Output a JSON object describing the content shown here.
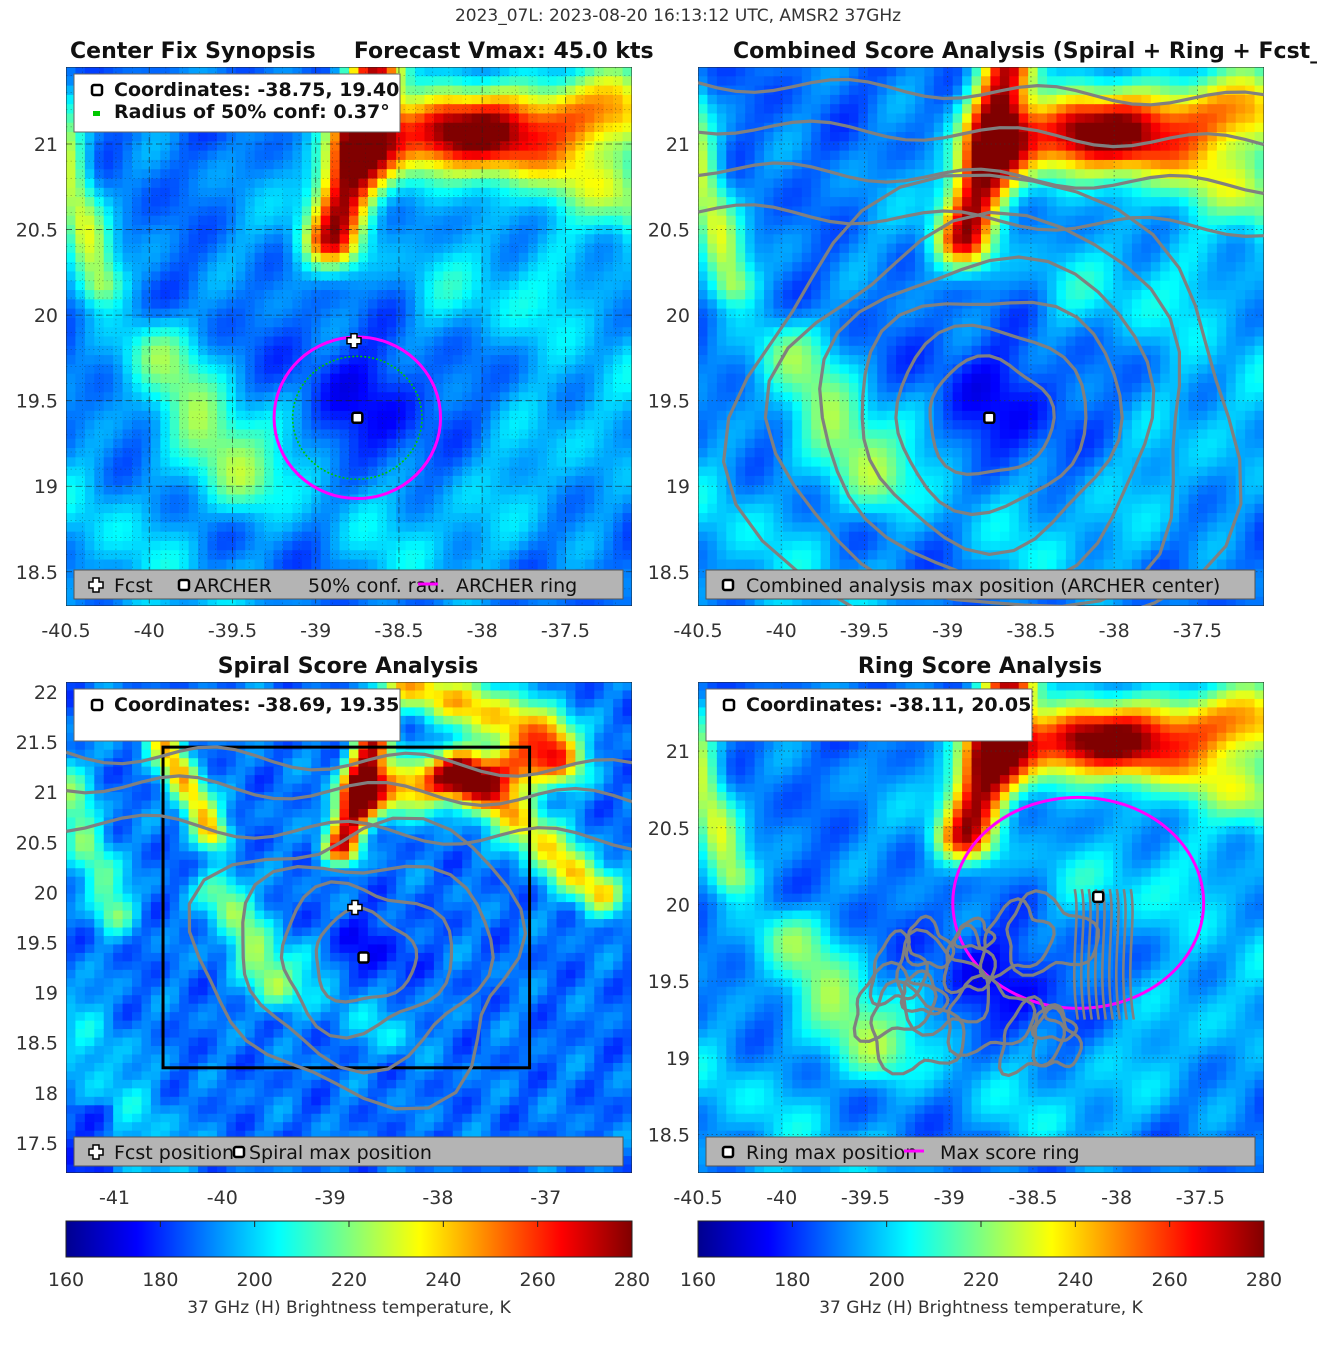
{
  "figure_title": "2023_07L: 2023-08-20 16:13:12 UTC, AMSR2 37GHz",
  "colors": {
    "jet": [
      "#00008f",
      "#0000ff",
      "#00ffff",
      "#ffff00",
      "#ff0000",
      "#800000"
    ],
    "contour": "#808080",
    "ring": "#ff00ff",
    "conf": "#00c800",
    "legend_bg": "#b4b4b4"
  },
  "chart_data": [
    {
      "id": "center-fix",
      "type": "heatmap",
      "title": "Center Fix Synopsis     Forecast Vmax: 45.0 kts",
      "xlim": [
        -40.5,
        -37.1
      ],
      "ylim": [
        18.3,
        21.45
      ],
      "xticks": [
        "-40.5",
        "-40",
        "-39.5",
        "-39",
        "-38.5",
        "-38",
        "-37.5"
      ],
      "xtick_values": [
        -40.5,
        -40,
        -39.5,
        -39,
        -38.5,
        -38,
        -37.5
      ],
      "yticks": [
        "18.5",
        "19",
        "19.5",
        "20",
        "20.5",
        "21"
      ],
      "ytick_values": [
        18.5,
        19,
        19.5,
        20,
        20.5,
        21
      ],
      "grid": "dashed-major",
      "info_lines": [
        "Coordinates: -38.75, 19.40",
        "Radius of 50% conf: 0.37°"
      ],
      "legend": [
        "Fcst",
        "ARCHER",
        "50% conf. rad.",
        "ARCHER ring"
      ],
      "fcst_position": [
        -38.77,
        19.85
      ],
      "archer_center": [
        -38.75,
        19.4
      ],
      "conf_radius_deg": 0.37,
      "ring_radius_deg": 0.5
    },
    {
      "id": "combined",
      "type": "heatmap",
      "title": "Combined Score Analysis (Spiral + Ring + Fcst_Pe",
      "xlim": [
        -40.5,
        -37.1
      ],
      "ylim": [
        18.3,
        21.45
      ],
      "xticks": [
        "-40.5",
        "-40",
        "-39.5",
        "-39",
        "-38.5",
        "-38",
        "-37.5"
      ],
      "xtick_values": [
        -40.5,
        -40,
        -39.5,
        -39,
        -38.5,
        -38,
        -37.5
      ],
      "yticks": [
        "18.5",
        "19",
        "19.5",
        "20",
        "20.5",
        "21"
      ],
      "ytick_values": [
        18.5,
        19,
        19.5,
        20,
        20.5,
        21
      ],
      "grid": "dotted",
      "legend": [
        "Combined analysis max position (ARCHER center)"
      ],
      "max_position": [
        -38.75,
        19.4
      ]
    },
    {
      "id": "spiral",
      "type": "heatmap",
      "title": "Spiral Score Analysis",
      "xlim": [
        -41.45,
        -36.2
      ],
      "ylim": [
        17.2,
        22.1
      ],
      "xticks": [
        "-41",
        "-40",
        "-39",
        "-38",
        "-37"
      ],
      "xtick_values": [
        -41,
        -40,
        -39,
        -38,
        -37
      ],
      "yticks": [
        "17.5",
        "18",
        "18.5",
        "19",
        "19.5",
        "20",
        "20.5",
        "21",
        "21.5",
        "22"
      ],
      "ytick_values": [
        17.5,
        18,
        18.5,
        19,
        19.5,
        20,
        20.5,
        21,
        21.5,
        22
      ],
      "grid": "none",
      "info_lines": [
        "Coordinates: -38.69, 19.35"
      ],
      "legend": [
        "Fcst position",
        "Spiral max position"
      ],
      "fcst_position": [
        -38.77,
        19.85
      ],
      "max_position": [
        -38.69,
        19.35
      ],
      "search_box": [
        -40.55,
        18.25,
        -37.15,
        21.45
      ]
    },
    {
      "id": "ring",
      "type": "heatmap",
      "title": "Ring Score Analysis",
      "xlim": [
        -40.5,
        -37.12
      ],
      "ylim": [
        18.25,
        21.45
      ],
      "xticks": [
        "-40.5",
        "-40",
        "-39.5",
        "-39",
        "-38.5",
        "-38",
        "-37.5"
      ],
      "xtick_values": [
        -40.5,
        -40,
        -39.5,
        -39,
        -38.5,
        -38,
        -37.5
      ],
      "yticks": [
        "18.5",
        "19",
        "19.5",
        "20",
        "20.5",
        "21"
      ],
      "ytick_values": [
        18.5,
        19,
        19.5,
        20,
        20.5,
        21
      ],
      "grid": "dotted",
      "info_lines": [
        "Coordinates: -38.11, 20.05"
      ],
      "legend": [
        "Ring max position",
        "Max score ring"
      ],
      "max_position": [
        -38.11,
        20.05
      ],
      "ring_radius_deg": 0.7
    }
  ],
  "colorbars": [
    {
      "ticks": [
        "160",
        "180",
        "200",
        "220",
        "240",
        "260",
        "280"
      ],
      "range": [
        160,
        280
      ],
      "label": "37 GHz (H) Brightness temperature, K"
    },
    {
      "ticks": [
        "160",
        "180",
        "200",
        "220",
        "240",
        "260",
        "280"
      ],
      "range": [
        160,
        280
      ],
      "label": "37 GHz (H) Brightness temperature, K"
    }
  ]
}
